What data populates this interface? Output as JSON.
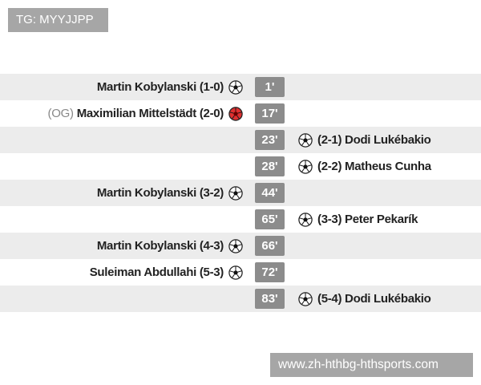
{
  "watermarks": {
    "top": "TG: MYYJJPP",
    "bottom": "www.zh-hthbg-hthsports.com"
  },
  "colors": {
    "minute_badge": "#8c8c8c",
    "row_alt": "#ececec",
    "own_goal_ball": "#e03030"
  },
  "events": [
    {
      "side": "home",
      "player": "Martin Kobylanski",
      "score": "(1-0)",
      "minute": "1'",
      "icon": "soccer-ball-icon"
    },
    {
      "side": "home",
      "prefix": "(OG)",
      "player": "Maximilian Mittelstädt",
      "score": "(2-0)",
      "minute": "17'",
      "icon": "own-goal-ball-icon"
    },
    {
      "side": "away",
      "player": "Dodi Lukébakio",
      "score": "(2-1)",
      "minute": "23'",
      "icon": "soccer-ball-icon"
    },
    {
      "side": "away",
      "player": "Matheus Cunha",
      "score": "(2-2)",
      "minute": "28'",
      "icon": "soccer-ball-icon"
    },
    {
      "side": "home",
      "player": "Martin Kobylanski",
      "score": "(3-2)",
      "minute": "44'",
      "icon": "soccer-ball-icon"
    },
    {
      "side": "away",
      "player": "Peter Pekarík",
      "score": "(3-3)",
      "minute": "65'",
      "icon": "soccer-ball-icon"
    },
    {
      "side": "home",
      "player": "Martin Kobylanski",
      "score": "(4-3)",
      "minute": "66'",
      "icon": "soccer-ball-icon"
    },
    {
      "side": "home",
      "player": "Suleiman Abdullahi",
      "score": "(5-3)",
      "minute": "72'",
      "icon": "soccer-ball-icon"
    },
    {
      "side": "away",
      "player": "Dodi Lukébakio",
      "score": "(5-4)",
      "minute": "83'",
      "icon": "soccer-ball-icon"
    }
  ]
}
